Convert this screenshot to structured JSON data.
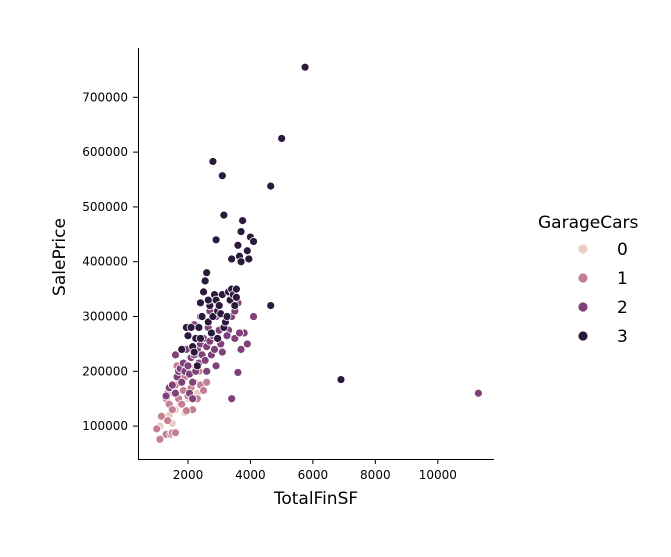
{
  "chart_data": {
    "type": "scatter",
    "xlabel": "TotalFinSF",
    "ylabel": "SalePrice",
    "xlim": [
      400,
      11800
    ],
    "ylim": [
      40000,
      790000
    ],
    "x_ticks": [
      2000,
      4000,
      6000,
      8000,
      10000
    ],
    "y_ticks": [
      100000,
      200000,
      300000,
      400000,
      500000,
      600000,
      700000
    ],
    "grid": false,
    "legend": {
      "title": "GarageCars",
      "placement": "right",
      "entries": [
        {
          "label": "0",
          "color": "#eccbc2"
        },
        {
          "label": "1",
          "color": "#c37f95"
        },
        {
          "label": "2",
          "color": "#7f4178"
        },
        {
          "label": "3",
          "color": "#2b1a3b"
        }
      ]
    },
    "series": [
      {
        "name": "0",
        "color": "#eccbc2",
        "points": [
          [
            1100,
            100000
          ],
          [
            1250,
            115000
          ],
          [
            1400,
            120000
          ],
          [
            1600,
            130000
          ],
          [
            1750,
            140000
          ],
          [
            2000,
            150000
          ],
          [
            2300,
            160000
          ],
          [
            2500,
            175000
          ],
          [
            1500,
            105000
          ],
          [
            1900,
            125000
          ]
        ]
      },
      {
        "name": "1",
        "color": "#c37f95",
        "points": [
          [
            1000,
            95000
          ],
          [
            1100,
            76000
          ],
          [
            1150,
            118000
          ],
          [
            1300,
            85000
          ],
          [
            1350,
            110000
          ],
          [
            1450,
            85000
          ],
          [
            1500,
            88000
          ],
          [
            1600,
            88000
          ],
          [
            1300,
            150000
          ],
          [
            1350,
            160000
          ],
          [
            1400,
            140000
          ],
          [
            1500,
            130000
          ],
          [
            1550,
            160000
          ],
          [
            1600,
            175000
          ],
          [
            1700,
            150000
          ],
          [
            1750,
            185000
          ],
          [
            1800,
            140000
          ],
          [
            1850,
            165000
          ],
          [
            1900,
            190000
          ],
          [
            2000,
            155000
          ],
          [
            2100,
            170000
          ],
          [
            2150,
            130000
          ],
          [
            2200,
            180000
          ],
          [
            2300,
            150000
          ],
          [
            2400,
            175000
          ],
          [
            2500,
            165000
          ],
          [
            2600,
            180000
          ],
          [
            2250,
            205000
          ],
          [
            1650,
            210000
          ],
          [
            1950,
            128000
          ],
          [
            2350,
            200000
          ],
          [
            1450,
            170000
          ]
        ]
      },
      {
        "name": "2",
        "color": "#7f4178",
        "points": [
          [
            1300,
            155000
          ],
          [
            1400,
            170000
          ],
          [
            1500,
            175000
          ],
          [
            1600,
            160000
          ],
          [
            1650,
            190000
          ],
          [
            1700,
            200000
          ],
          [
            1750,
            205000
          ],
          [
            1800,
            180000
          ],
          [
            1850,
            215000
          ],
          [
            1900,
            200000
          ],
          [
            2000,
            210000
          ],
          [
            2050,
            195000
          ],
          [
            2100,
            225000
          ],
          [
            2150,
            180000
          ],
          [
            2200,
            230000
          ],
          [
            2250,
            200000
          ],
          [
            2300,
            240000
          ],
          [
            2350,
            215000
          ],
          [
            2400,
            250000
          ],
          [
            2450,
            230000
          ],
          [
            2500,
            260000
          ],
          [
            2550,
            220000
          ],
          [
            2600,
            245000
          ],
          [
            2650,
            280000
          ],
          [
            2700,
            255000
          ],
          [
            2750,
            230000
          ],
          [
            2800,
            265000
          ],
          [
            2850,
            240000
          ],
          [
            2900,
            210000
          ],
          [
            3000,
            275000
          ],
          [
            3050,
            250000
          ],
          [
            3100,
            235000
          ],
          [
            3200,
            290000
          ],
          [
            3300,
            275000
          ],
          [
            3400,
            300000
          ],
          [
            3500,
            310000
          ],
          [
            3600,
            325000
          ],
          [
            3700,
            240000
          ],
          [
            3800,
            270000
          ],
          [
            3900,
            250000
          ],
          [
            4100,
            300000
          ],
          [
            3400,
            150000
          ],
          [
            3600,
            198000
          ],
          [
            11300,
            160000
          ],
          [
            2200,
            285000
          ],
          [
            2400,
            300000
          ],
          [
            2700,
            310000
          ],
          [
            1600,
            230000
          ],
          [
            1950,
            240000
          ],
          [
            2900,
            300000
          ],
          [
            3250,
            265000
          ],
          [
            3500,
            260000
          ],
          [
            3650,
            270000
          ],
          [
            2050,
            160000
          ],
          [
            2150,
            150000
          ],
          [
            2600,
            200000
          ]
        ]
      },
      {
        "name": "3",
        "color": "#2b1a3b",
        "points": [
          [
            1800,
            240000
          ],
          [
            1950,
            280000
          ],
          [
            2000,
            265000
          ],
          [
            2100,
            280000
          ],
          [
            2150,
            245000
          ],
          [
            2200,
            235000
          ],
          [
            2250,
            260000
          ],
          [
            2300,
            210000
          ],
          [
            2350,
            280000
          ],
          [
            2400,
            325000
          ],
          [
            2450,
            300000
          ],
          [
            2500,
            345000
          ],
          [
            2550,
            365000
          ],
          [
            2600,
            380000
          ],
          [
            2650,
            290000
          ],
          [
            2700,
            320000
          ],
          [
            2750,
            270000
          ],
          [
            2800,
            300000
          ],
          [
            2850,
            340000
          ],
          [
            2900,
            330000
          ],
          [
            2950,
            310000
          ],
          [
            3000,
            320000
          ],
          [
            3100,
            340000
          ],
          [
            3150,
            280000
          ],
          [
            3200,
            290000
          ],
          [
            3300,
            345000
          ],
          [
            3350,
            330000
          ],
          [
            3400,
            350000
          ],
          [
            3450,
            340000
          ],
          [
            3500,
            320000
          ],
          [
            3550,
            350000
          ],
          [
            3600,
            430000
          ],
          [
            3650,
            410000
          ],
          [
            3700,
            455000
          ],
          [
            3750,
            475000
          ],
          [
            3900,
            420000
          ],
          [
            3950,
            405000
          ],
          [
            4000,
            445000
          ],
          [
            4100,
            437000
          ],
          [
            3400,
            405000
          ],
          [
            3150,
            485000
          ],
          [
            2900,
            440000
          ],
          [
            2800,
            583000
          ],
          [
            3100,
            557000
          ],
          [
            4650,
            538000
          ],
          [
            4650,
            320000
          ],
          [
            5000,
            625000
          ],
          [
            5750,
            755000
          ],
          [
            6900,
            185000
          ],
          [
            2950,
            260000
          ],
          [
            2650,
            330000
          ],
          [
            3050,
            305000
          ],
          [
            3250,
            300000
          ],
          [
            3700,
            400000
          ],
          [
            3550,
            335000
          ],
          [
            2400,
            260000
          ]
        ]
      }
    ]
  }
}
